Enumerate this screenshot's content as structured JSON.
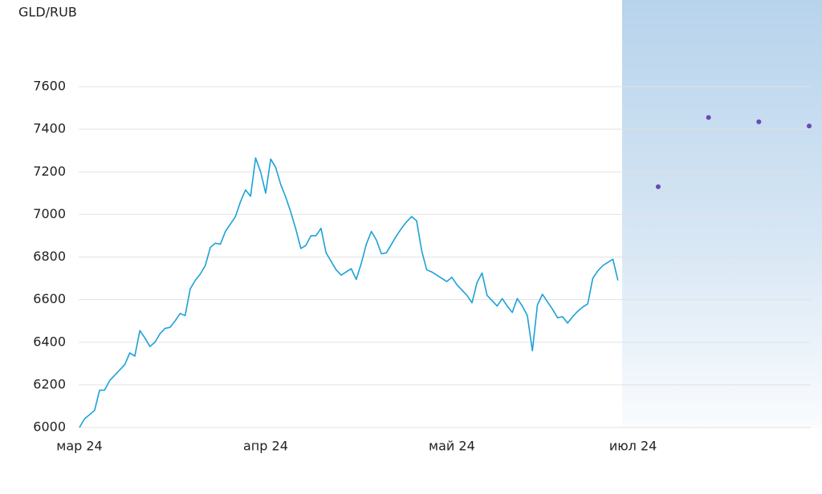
{
  "chart_data": {
    "type": "line",
    "title": "GLD/RUB",
    "categories": [
      "мар 24",
      null,
      null,
      null,
      null,
      null,
      null,
      null,
      null,
      null,
      null,
      null,
      null,
      null,
      null,
      null,
      null,
      null,
      null,
      null,
      null,
      null,
      null,
      null,
      null,
      null,
      null,
      null,
      null,
      null,
      null,
      null,
      null,
      null,
      null,
      null,
      null,
      "апр 24",
      null,
      null,
      null,
      null,
      null,
      null,
      null,
      null,
      null,
      null,
      null,
      null,
      null,
      null,
      null,
      null,
      null,
      null,
      null,
      null,
      null,
      null,
      null,
      null,
      null,
      null,
      null,
      null,
      null,
      null,
      null,
      null,
      null,
      null,
      null,
      null,
      "май 24",
      null,
      null,
      null,
      null,
      null,
      null,
      null,
      null,
      null,
      null,
      null,
      null,
      null,
      null,
      null,
      null,
      null,
      null,
      null,
      null,
      null,
      null,
      null,
      null,
      null,
      null,
      null,
      null,
      null,
      null,
      null,
      null,
      null,
      null,
      null,
      "июл 24",
      null,
      null,
      null,
      null,
      null,
      null,
      null,
      null,
      null,
      null,
      null,
      null,
      null,
      null,
      null,
      null,
      null,
      null,
      null,
      null,
      null,
      null,
      null,
      null,
      null,
      null,
      null,
      null,
      null,
      null,
      null,
      null,
      null,
      null,
      null
    ],
    "series": [
      {
        "color": "#1ba1d8",
        "values": [
          6000,
          6040,
          6060,
          6080,
          6175,
          6175,
          6220,
          6245,
          6270,
          6295,
          6350,
          6335,
          6455,
          6420,
          6380,
          6400,
          6440,
          6465,
          6470,
          6500,
          6535,
          6525,
          6650,
          6690,
          6720,
          6760,
          6845,
          6865,
          6860,
          6920,
          6955,
          6990,
          7060,
          7115,
          7085,
          7265,
          7200,
          7100,
          7260,
          7220,
          7140,
          7080,
          7010,
          6930,
          6840,
          6855,
          6900,
          6900,
          6935,
          6820,
          6780,
          6740,
          6715,
          6730,
          6745,
          6695,
          6770,
          6860,
          6920,
          6880,
          6815,
          6820,
          6860,
          6900,
          6935,
          6965,
          6990,
          6970,
          6830,
          6740,
          6730,
          6715,
          6700,
          6685,
          6705,
          6670,
          6645,
          6620,
          6585,
          6680,
          6725,
          6620,
          6595,
          6570,
          6605,
          6570,
          6540,
          6605,
          6570,
          6525,
          6360,
          6575,
          6625,
          6590,
          6555,
          6515,
          6520,
          6490,
          6520,
          6545,
          6565,
          6580,
          6700,
          6735,
          6760,
          6775,
          6790,
          6690,
          null,
          null,
          null,
          null,
          null,
          null,
          null,
          null,
          null,
          null,
          null,
          null,
          null,
          null,
          null,
          null,
          null,
          null,
          null,
          null,
          null,
          null,
          null,
          null,
          null,
          null,
          null,
          null,
          null,
          null,
          null,
          null,
          null,
          null,
          null,
          null,
          null,
          null
        ]
      },
      {
        "color": "#6a4bb0",
        "marker": "dot",
        "values": [
          null,
          null,
          null,
          null,
          null,
          null,
          null,
          null,
          null,
          null,
          null,
          null,
          null,
          null,
          null,
          null,
          null,
          null,
          null,
          null,
          null,
          null,
          null,
          null,
          null,
          null,
          null,
          null,
          null,
          null,
          null,
          null,
          null,
          null,
          null,
          null,
          null,
          null,
          null,
          null,
          null,
          null,
          null,
          null,
          null,
          null,
          null,
          null,
          null,
          null,
          null,
          null,
          null,
          null,
          null,
          null,
          null,
          null,
          null,
          null,
          null,
          null,
          null,
          null,
          null,
          null,
          null,
          null,
          null,
          null,
          null,
          null,
          null,
          null,
          null,
          null,
          null,
          null,
          null,
          null,
          null,
          null,
          null,
          null,
          null,
          null,
          null,
          null,
          null,
          null,
          null,
          null,
          null,
          null,
          null,
          null,
          null,
          null,
          null,
          null,
          null,
          null,
          null,
          null,
          null,
          null,
          null,
          null,
          null,
          null,
          null,
          null,
          null,
          null,
          null,
          7130,
          null,
          null,
          null,
          null,
          null,
          null,
          null,
          null,
          null,
          7455,
          null,
          null,
          null,
          null,
          null,
          null,
          null,
          null,
          null,
          7435,
          null,
          null,
          null,
          null,
          null,
          null,
          null,
          null,
          null,
          7415
        ]
      }
    ],
    "ylim": [
      6000,
      7600
    ],
    "yticks": [
      6000,
      6200,
      6400,
      6600,
      6800,
      7000,
      7200,
      7400,
      7600
    ],
    "grid": true
  }
}
